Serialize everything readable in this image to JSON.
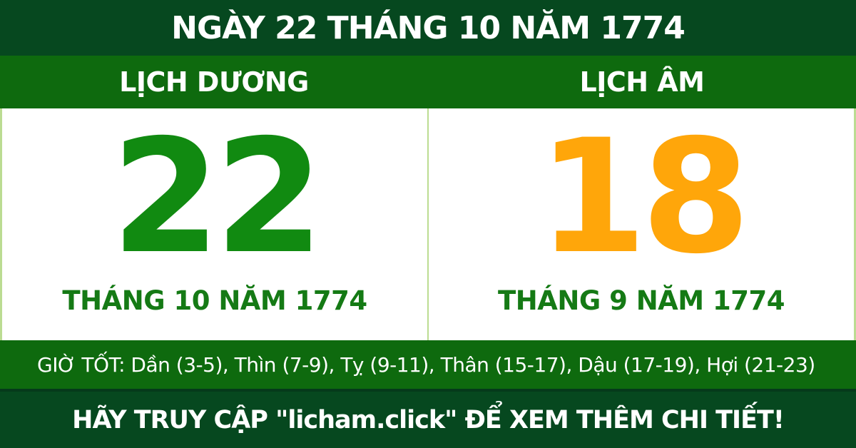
{
  "header": {
    "title": "NGÀY 22 THÁNG 10 NĂM 1774"
  },
  "calendar_bar": {
    "solar_label": "LỊCH DƯƠNG",
    "lunar_label": "LỊCH ÂM"
  },
  "solar": {
    "day": "22",
    "month_year": "THÁNG 10 NĂM 1774"
  },
  "lunar": {
    "day": "18",
    "month_year": "THÁNG 9 NĂM 1774"
  },
  "good_hours": {
    "text": "GIỜ TỐT: Dần (3-5), Thìn (7-9), Tỵ (9-11), Thân (15-17), Dậu (17-19), Hợi (21-23)"
  },
  "footer": {
    "text": "HÃY TRUY CẬP \"licham.click\" ĐỂ XEM THÊM CHI TIẾT!"
  },
  "colors": {
    "dark_green": "#06481F",
    "bright_green": "#0E6A0E",
    "solar_day_green": "#118A11",
    "lunar_day_orange": "#FFA60A",
    "month_text_green": "#157A15",
    "divider_light_green": "#BBDC92",
    "text_white": "#FFFFFF"
  }
}
